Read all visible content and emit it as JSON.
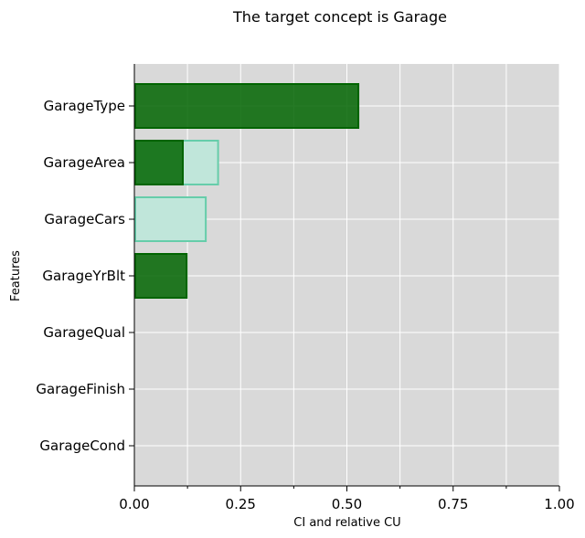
{
  "chart_data": {
    "type": "bar",
    "orientation": "horizontal",
    "title": "The target concept is Garage",
    "xlabel": "CI and relative CU",
    "ylabel": "Features",
    "categories": [
      "GarageType",
      "GarageArea",
      "GarageCars",
      "GarageYrBlt",
      "GarageQual",
      "GarageFinish",
      "GarageCond"
    ],
    "series": [
      {
        "key": "ci",
        "values": [
          0.0,
          0.197,
          0.168,
          0.0,
          0.0,
          0.0,
          0.0
        ],
        "fill": "#c0e6da",
        "edge": "#66cdaa"
      },
      {
        "key": "cu",
        "values": [
          0.527,
          0.114,
          0.0,
          0.123,
          0.0,
          0.0,
          0.0
        ],
        "fill": "#006400",
        "edge": "#006400",
        "opacity": 0.85
      }
    ],
    "xlim": [
      0,
      1
    ],
    "xticks": [
      0,
      0.25,
      0.5,
      0.75,
      1
    ],
    "xtick_labels": [
      "0.00",
      "0.25",
      "0.50",
      "0.75",
      "1.00"
    ],
    "grid": true,
    "background": "#d9d9d9"
  }
}
